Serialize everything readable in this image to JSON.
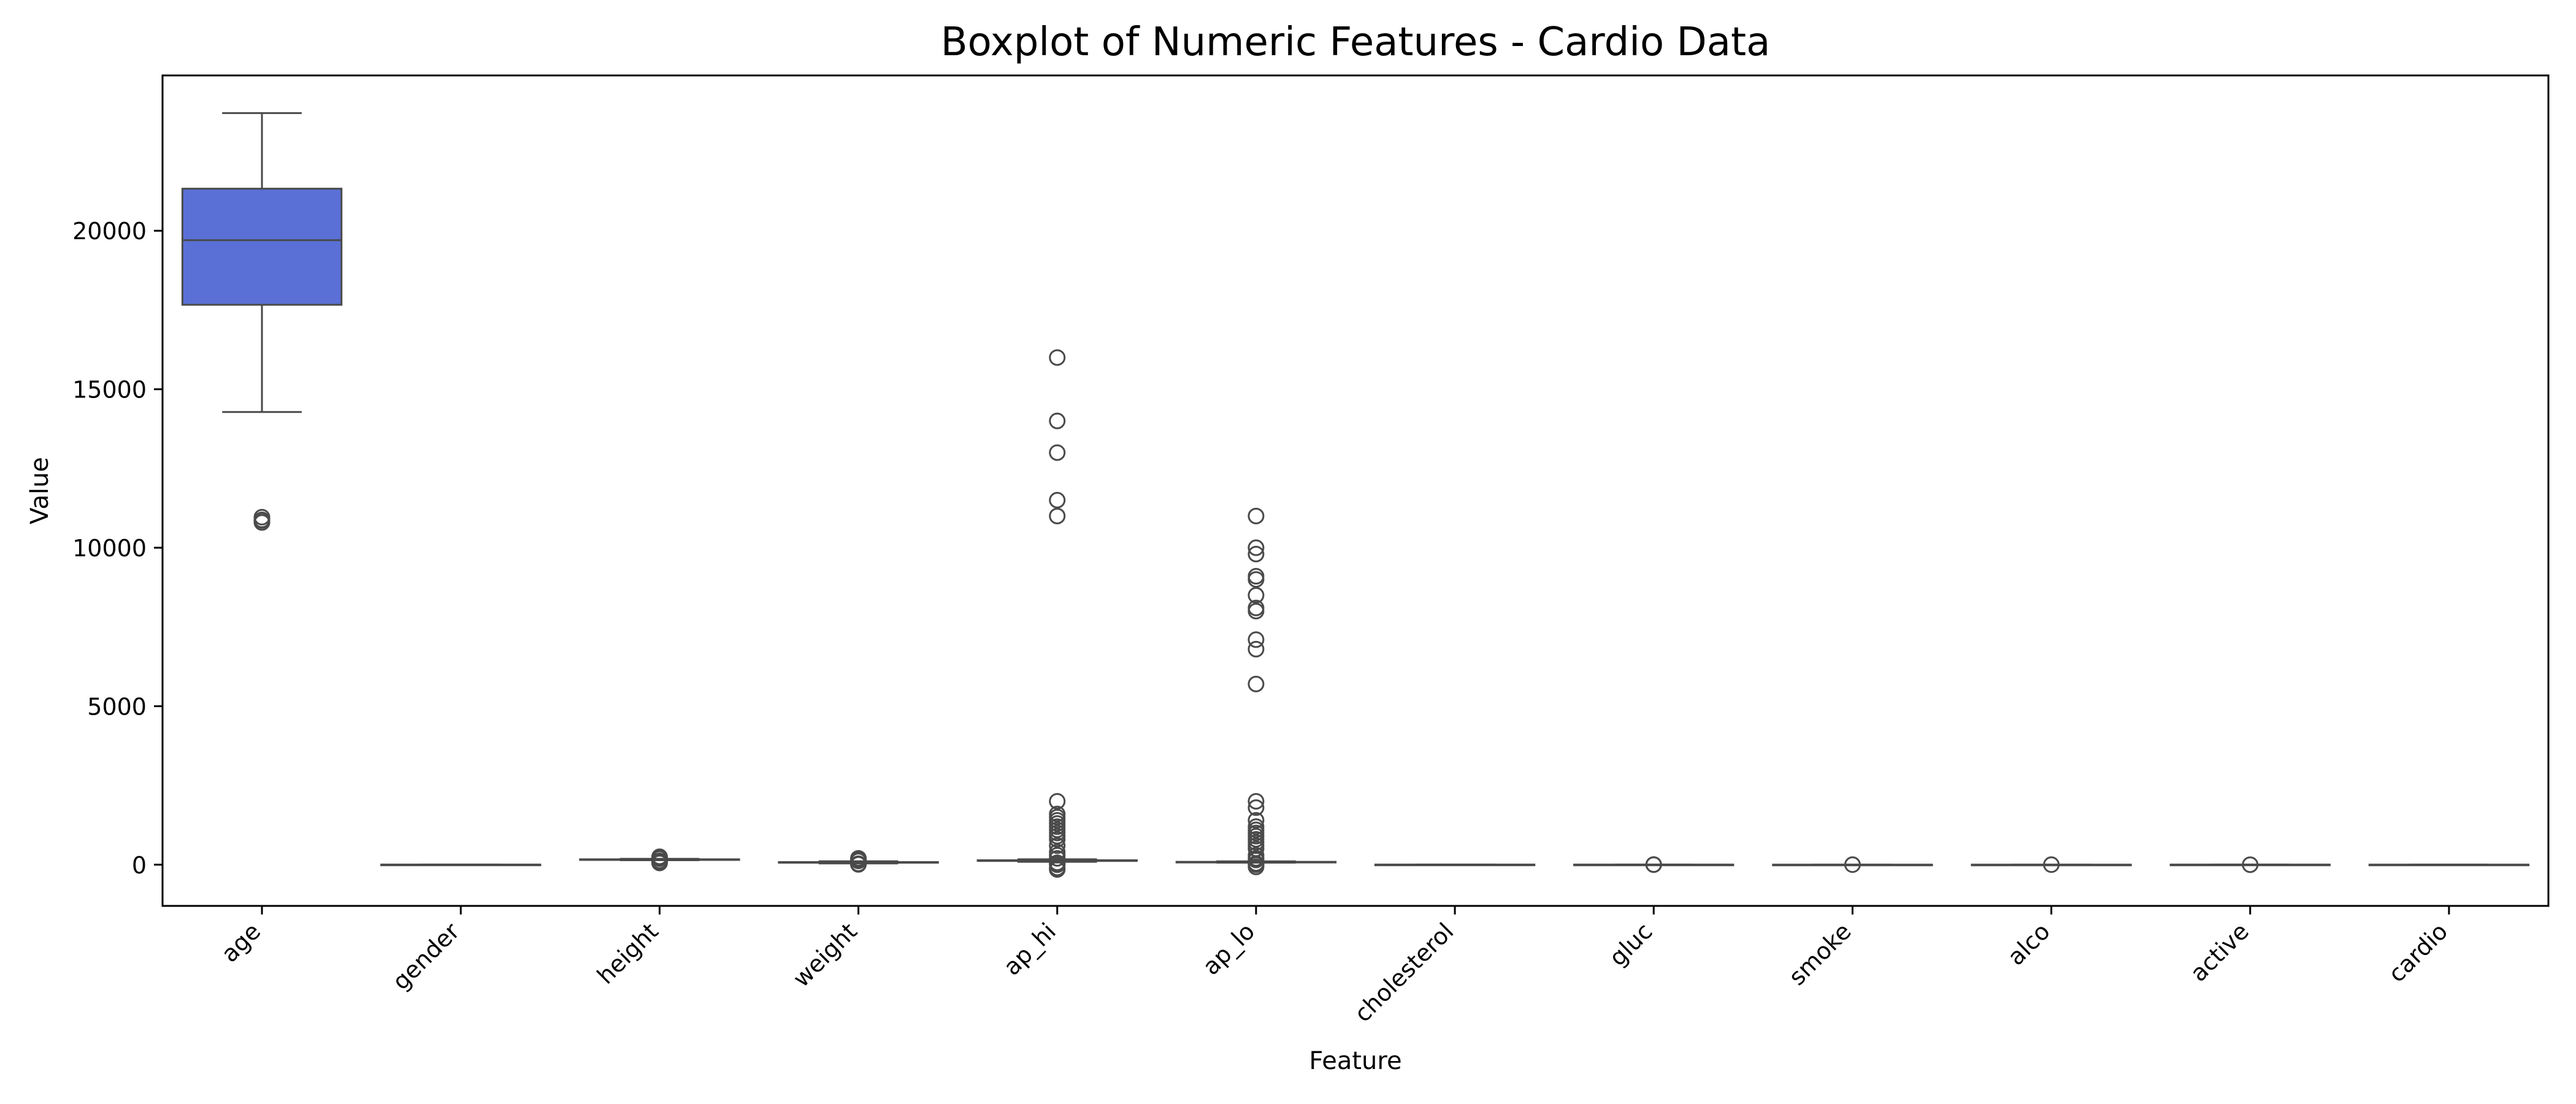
{
  "chart_data": {
    "type": "boxplot",
    "title": "Boxplot of Numeric Features - Cardio Data",
    "xlabel": "Feature",
    "ylabel": "Value",
    "ylim": [
      -1300,
      24900
    ],
    "yticks": [
      0,
      5000,
      10000,
      15000,
      20000
    ],
    "grid": false,
    "box_color": "#5a70d6",
    "line_color": "#4a4a4a",
    "categories": [
      "age",
      "gender",
      "height",
      "weight",
      "ap_hi",
      "ap_lo",
      "cholesterol",
      "gluc",
      "smoke",
      "alco",
      "active",
      "cardio"
    ],
    "boxes": [
      {
        "name": "age",
        "whisker_low": 14282,
        "q1": 17664,
        "median": 19703,
        "q3": 21327,
        "whisker_high": 23713,
        "outliers": [
          10798,
          10859,
          10878,
          10964
        ]
      },
      {
        "name": "gender",
        "whisker_low": 1,
        "q1": 1,
        "median": 1,
        "q3": 2,
        "whisker_high": 2,
        "outliers": []
      },
      {
        "name": "height",
        "whisker_low": 142,
        "q1": 159,
        "median": 165,
        "q3": 170,
        "whisker_high": 186,
        "outliers": [
          55,
          70,
          100,
          120,
          190,
          200,
          210,
          230,
          250
        ]
      },
      {
        "name": "weight",
        "whisker_low": 40,
        "q1": 65,
        "median": 72,
        "q3": 82,
        "whisker_high": 107,
        "outliers": [
          10,
          20,
          30,
          120,
          140,
          160,
          180,
          200
        ]
      },
      {
        "name": "ap_hi",
        "whisker_low": 90,
        "q1": 120,
        "median": 120,
        "q3": 140,
        "whisker_high": 170,
        "outliers": [
          -150,
          -100,
          0,
          20,
          60,
          200,
          300,
          400,
          600,
          800,
          900,
          1000,
          1100,
          1200,
          1300,
          1400,
          1500,
          1600,
          2000,
          11000,
          11500,
          13000,
          14000,
          16000
        ]
      },
      {
        "name": "ap_lo",
        "whisker_low": 65,
        "q1": 80,
        "median": 80,
        "q3": 90,
        "whisker_high": 105,
        "outliers": [
          -70,
          0,
          20,
          40,
          150,
          200,
          300,
          500,
          600,
          700,
          800,
          900,
          1000,
          1100,
          1200,
          1400,
          1800,
          2000,
          5700,
          6800,
          7100,
          8000,
          8100,
          8500,
          9000,
          9100,
          9800,
          10000,
          11000
        ]
      },
      {
        "name": "cholesterol",
        "whisker_low": 1,
        "q1": 1,
        "median": 1,
        "q3": 2,
        "whisker_high": 3,
        "outliers": []
      },
      {
        "name": "gluc",
        "whisker_low": 1,
        "q1": 1,
        "median": 1,
        "q3": 1,
        "whisker_high": 1,
        "outliers": [
          2,
          3
        ]
      },
      {
        "name": "smoke",
        "whisker_low": 0,
        "q1": 0,
        "median": 0,
        "q3": 0,
        "whisker_high": 0,
        "outliers": [
          1
        ]
      },
      {
        "name": "alco",
        "whisker_low": 0,
        "q1": 0,
        "median": 0,
        "q3": 0,
        "whisker_high": 0,
        "outliers": [
          1
        ]
      },
      {
        "name": "active",
        "whisker_low": 1,
        "q1": 1,
        "median": 1,
        "q3": 1,
        "whisker_high": 1,
        "outliers": [
          0
        ]
      },
      {
        "name": "cardio",
        "whisker_low": 0,
        "q1": 0,
        "median": 0,
        "q3": 1,
        "whisker_high": 1,
        "outliers": []
      }
    ]
  }
}
